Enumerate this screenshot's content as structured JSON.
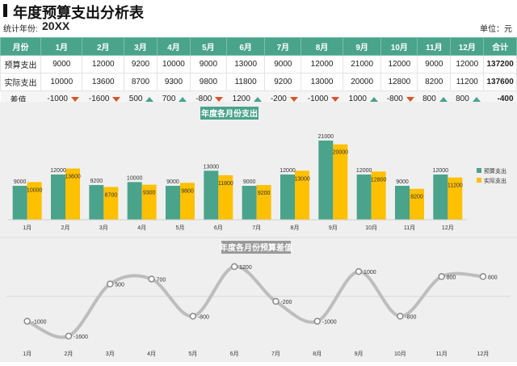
{
  "header": {
    "title": "年度预算支出分析表",
    "year_label": "统计年份:",
    "year_value": "20XX",
    "unit_label": "单位：元"
  },
  "table": {
    "columns": [
      "月份",
      "1月",
      "2月",
      "3月",
      "4月",
      "5月",
      "6月",
      "7月",
      "8月",
      "9月",
      "10月",
      "11月",
      "12月",
      "合计"
    ],
    "rows": [
      {
        "label": "预算支出",
        "values": [
          "9000",
          "12000",
          "9200",
          "10000",
          "9000",
          "13000",
          "9000",
          "12000",
          "21000",
          "12000",
          "9000",
          "12000"
        ],
        "total": "137200"
      },
      {
        "label": "实际支出",
        "values": [
          "10000",
          "13600",
          "8700",
          "9300",
          "9800",
          "11800",
          "9200",
          "13000",
          "20000",
          "12800",
          "8200",
          "11200"
        ],
        "total": "137600"
      }
    ],
    "diff": {
      "label": "差值",
      "values": [
        "-1000",
        "-1600",
        "500",
        "700",
        "-800",
        "1200",
        "-200",
        "-1000",
        "1000",
        "-800",
        "800",
        "800"
      ],
      "total": "-400"
    }
  },
  "colors": {
    "budget": "#4aa38b",
    "actual": "#ffc000",
    "down": "#d9542b",
    "up": "#4aa38b"
  },
  "chart_data": [
    {
      "type": "bar",
      "title": "年度各月份支出",
      "categories": [
        "1月",
        "2月",
        "3月",
        "4月",
        "5月",
        "6月",
        "7月",
        "8月",
        "9月",
        "10月",
        "11月",
        "12月"
      ],
      "series": [
        {
          "name": "预算支出",
          "values": [
            9000,
            12000,
            9200,
            10000,
            9000,
            13000,
            9000,
            12000,
            21000,
            12000,
            9000,
            12000
          ]
        },
        {
          "name": "实际支出",
          "values": [
            10000,
            13600,
            8700,
            9300,
            9800,
            11800,
            9200,
            13000,
            20000,
            12800,
            8200,
            11200
          ]
        }
      ],
      "legend": "right",
      "ylim": [
        0,
        21000
      ]
    },
    {
      "type": "line",
      "title": "年度各月份预算差值",
      "categories": [
        "1月",
        "2月",
        "3月",
        "4月",
        "5月",
        "6月",
        "7月",
        "8月",
        "9月",
        "10月",
        "11月",
        "12月"
      ],
      "series": [
        {
          "values": [
            -1000,
            -1600,
            500,
            700,
            -800,
            1200,
            -200,
            -1000,
            1000,
            -800,
            800,
            800
          ]
        }
      ],
      "ylim": [
        -1600,
        1200
      ]
    }
  ]
}
